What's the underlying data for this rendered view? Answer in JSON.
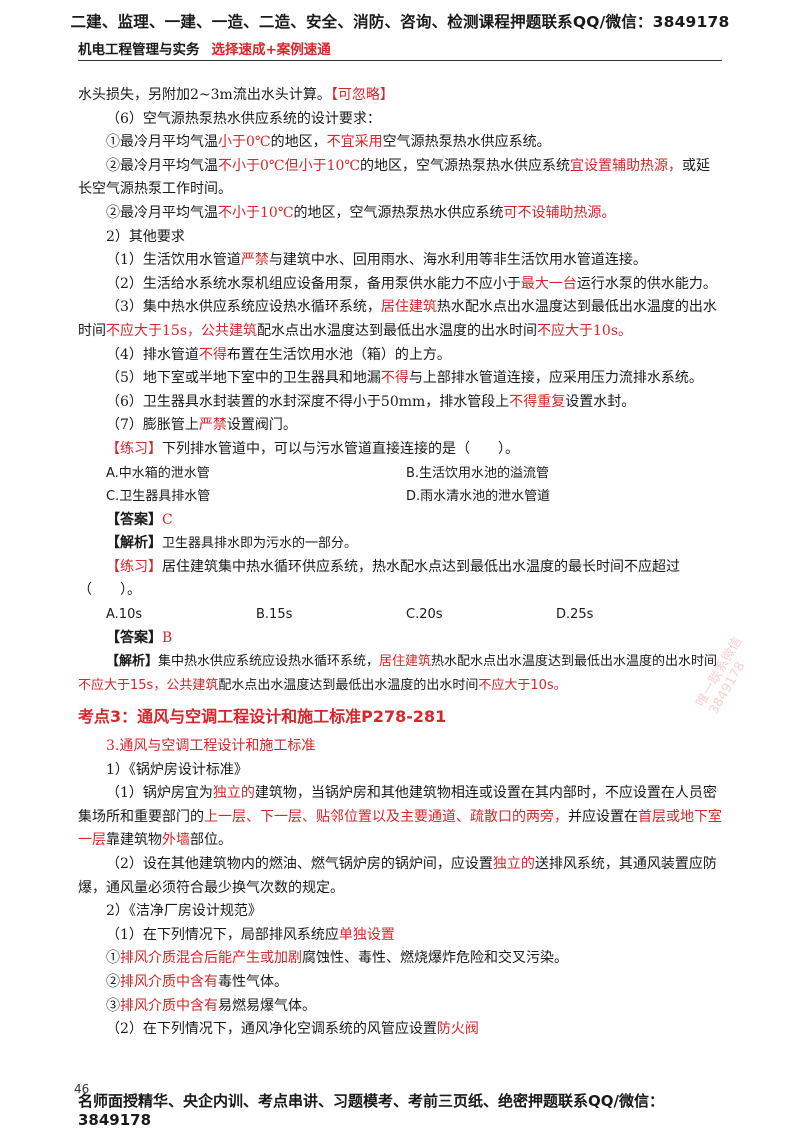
{
  "header": {
    "top_line": "二建、监理、一建、一造、二造、安全、消防、咨询、检测课程押题联系QQ/微信：3849178",
    "subject": "机电工程管理与实务",
    "subtitle": "选择速成+案例速通"
  },
  "body": {
    "l1a": "水头损失，另附加2~3m流出水头计算。",
    "l1b": "【可忽略】",
    "l2": "（6）空气源热泵热水供应系统的设计要求：",
    "l3a": "①最冷月平均气温",
    "l3b": "小于0℃",
    "l3c": "的地区，",
    "l3d": "不宜采用",
    "l3e": "空气源热泵热水供应系统。",
    "l4a": "②最冷月平均气温",
    "l4b": "不小于0℃但小于10℃",
    "l4c": "的地区，空气源热泵热水供应系统",
    "l4d": "宜设置辅助热源，",
    "l4e": "或延长空气源热泵工作时间。",
    "l5a": "②最冷月平均气温",
    "l5b": "不小于10℃",
    "l5c": "的地区，空气源热泵热水供应系统",
    "l5d": "可不设辅助热源。",
    "l6": "2）其他要求",
    "l7a": "（1）生活饮用水管道",
    "l7b": "严禁",
    "l7c": "与建筑中水、回用雨水、海水利用等非生活饮用水管道连接。",
    "l8a": "（2）生活给水系统水泵机组应设备用泵，备用泵供水能力不应小于",
    "l8b": "最大一台",
    "l8c": "运行水泵的供水能力。",
    "l9a": "（3）集中热水供应系统应设热水循环系统，",
    "l9b": "居住建筑",
    "l9c": "热水配水点出水温度达到最低出水温度的出水时间",
    "l9d": "不应大于15s，公共建筑",
    "l9e": "配水点出水温度达到最低出水温度的出水时间",
    "l9f": "不应大于10s。",
    "l10a": "（4）排水管道",
    "l10b": "不得",
    "l10c": "布置在生活饮用水池（箱）的上方。",
    "l11a": "（5）地下室或半地下室中的卫生器具和地漏",
    "l11b": "不得",
    "l11c": "与上部排水管道连接，应采用压力流排水系统。",
    "l12a": "（6）卫生器具水封装置的水封深度不得小于50mm，排水管段上",
    "l12b": "不得重复",
    "l12c": "设置水封。",
    "l13a": "（7）膨胀管上",
    "l13b": "严禁",
    "l13c": "设置阀门。",
    "q1_tag": "【练习】",
    "q1_text": "下列排水管道中，可以与污水管道直接连接的是（　　）。",
    "q1_a": "A.中水箱的泄水管",
    "q1_b": "B.生活饮用水池的溢流管",
    "q1_c": "C.卫生器具排水管",
    "q1_d": "D.雨水清水池的泄水管道",
    "ans_tag": "【答案】",
    "q1_ans": "C",
    "exp_tag": "【解析】",
    "q1_exp": "卫生器具排水即为污水的一部分。",
    "q2_tag": "【练习】",
    "q2_text": "居住建筑集中热水循环供应系统，热水配水点达到最低出水温度的最长时间不应超过（　　）。",
    "q2_a": "A.10s",
    "q2_b": "B.15s",
    "q2_c": "C.20s",
    "q2_d": "D.25s",
    "q2_ans": "B",
    "q2_exp_a": "集中热水供应系统应设热水循环系统，",
    "q2_exp_b": "居住建筑",
    "q2_exp_c": "热水配水点出水温度达到最低出水温度的出水时间",
    "q2_exp_d": "不应大于15s，公共建筑",
    "q2_exp_e": "配水点出水温度达到最低出水温度的出水时间",
    "q2_exp_f": "不应大于10s。",
    "heading": "考点3：通风与空调工程设计和施工标准P278-281",
    "sec3": "3.通风与空调工程设计和施工标准",
    "s1": "1）《锅炉房设计标准》",
    "s2a": "（1）锅炉房宜为",
    "s2b": "独立的",
    "s2c": "建筑物，当锅炉房和其他建筑物相连或设置在其内部时，不应设置在人员密集场所和重要部门的",
    "s2d": "上一层、下一层、贴邻位置以及主要通道、疏散口的两旁，",
    "s2e": "并应设置在",
    "s2f": "首层或地下室一层",
    "s2g": "靠建筑物",
    "s2h": "外墙",
    "s2i": "部位。",
    "s3a": "（2）设在其他建筑物内的燃油、燃气锅炉房的锅炉间，应设置",
    "s3b": "独立的",
    "s3c": "送排风系统，其通风装置应防爆，通风量必须符合最少换气次数的规定。",
    "s4": "2）《洁净厂房设计规范》",
    "s5a": "（1）在下列情况下，局部排风系统应",
    "s5b": "单独设置",
    "s6a": "①",
    "s6b": "排风介质混合后能产生或加剧",
    "s6c": "腐蚀性、毒性、燃烧爆炸危险和交叉污染。",
    "s7a": "②",
    "s7b": "排风介质中含有",
    "s7c": "毒性气体。",
    "s8a": "③",
    "s8b": "排风介质中含有",
    "s8c": "易燃易爆气体。",
    "s9a": "（2）在下列情况下，通风净化空调系统的风管应设置",
    "s9b": "防火阀"
  },
  "footer": {
    "page": "46",
    "text": "名师面授精华、央企内训、考点串讲、习题模考、考前三页纸、绝密押题联系QQ/微信：3849178"
  },
  "watermark": "唯一联系微信3849178"
}
